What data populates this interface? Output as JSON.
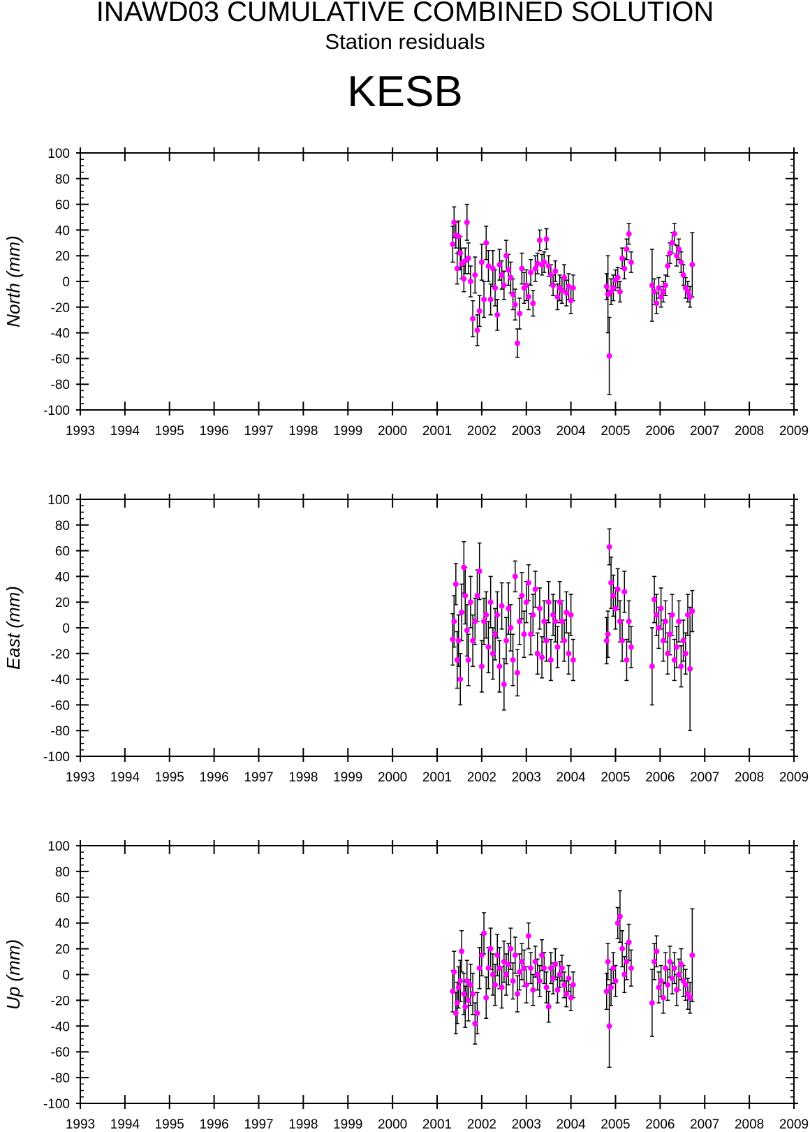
{
  "header": {
    "title": "INAWD03 CUMULATIVE COMBINED SOLUTION",
    "subtitle": "Station residuals",
    "station": "KESB"
  },
  "style": {
    "point_color": "#ff00ff",
    "errorbar_color": "#000000",
    "axis_color": "#000000"
  },
  "chart_data": [
    {
      "type": "scatter",
      "ylabel": "North (mm)",
      "xlim": [
        1993,
        2009
      ],
      "ylim": [
        -100,
        100
      ],
      "x_ticks": [
        1993,
        1994,
        1995,
        1996,
        1997,
        1998,
        1999,
        2000,
        2001,
        2002,
        2003,
        2004,
        2005,
        2006,
        2007,
        2008,
        2009
      ],
      "y_ticks": [
        -100,
        -80,
        -60,
        -40,
        -20,
        0,
        20,
        40,
        60,
        80,
        100
      ],
      "series": [
        {
          "x": [
            2001.35,
            2001.38,
            2001.42,
            2001.45,
            2001.48,
            2001.52,
            2001.55,
            2001.6,
            2001.63,
            2001.67,
            2001.7,
            2001.75,
            2001.8,
            2001.85,
            2001.9,
            2001.95,
            2002.0,
            2002.05,
            2002.1,
            2002.15,
            2002.2,
            2002.25,
            2002.3,
            2002.35,
            2002.4,
            2002.45,
            2002.5,
            2002.55,
            2002.6,
            2002.65,
            2002.7,
            2002.75,
            2002.8,
            2002.85,
            2002.9,
            2002.95,
            2003.0,
            2003.05,
            2003.1,
            2003.15,
            2003.2,
            2003.25,
            2003.3,
            2003.35,
            2003.4,
            2003.45,
            2003.5,
            2003.55,
            2003.6,
            2003.65,
            2003.7,
            2003.75,
            2003.8,
            2003.85,
            2003.9,
            2003.95,
            2004.0,
            2004.05,
            2004.8,
            2004.83,
            2004.86,
            2004.9,
            2004.95,
            2005.0,
            2005.05,
            2005.1,
            2005.15,
            2005.2,
            2005.25,
            2005.3,
            2005.35,
            2005.82,
            2005.87,
            2005.92,
            2005.97,
            2006.02,
            2006.07,
            2006.12,
            2006.17,
            2006.22,
            2006.27,
            2006.32,
            2006.37,
            2006.42,
            2006.47,
            2006.52,
            2006.57,
            2006.62,
            2006.67,
            2006.72
          ],
          "y": [
            29,
            46,
            36,
            10,
            35,
            22,
            14,
            2,
            16,
            46,
            18,
            0,
            -29,
            5,
            -38,
            -23,
            15,
            -14,
            30,
            12,
            -14,
            10,
            -5,
            -26,
            13,
            5,
            -3,
            20,
            9,
            3,
            -10,
            -18,
            -48,
            -25,
            10,
            -5,
            -3,
            -12,
            7,
            -17,
            10,
            14,
            32,
            13,
            15,
            33,
            12,
            5,
            -3,
            8,
            -12,
            -5,
            -7,
            3,
            -9,
            -4,
            -15,
            -5,
            -4,
            -10,
            -58,
            -8,
            -5,
            1,
            3,
            -8,
            18,
            10,
            25,
            37,
            15,
            -3,
            -8,
            -17,
            -5,
            -12,
            -8,
            -3,
            12,
            22,
            30,
            37,
            20,
            25,
            15,
            5,
            -5,
            -8,
            -12,
            13
          ],
          "err": [
            14,
            12,
            10,
            12,
            12,
            13,
            12,
            10,
            10,
            14,
            12,
            12,
            14,
            14,
            12,
            12,
            14,
            14,
            13,
            12,
            12,
            14,
            14,
            12,
            12,
            11,
            11,
            12,
            12,
            12,
            12,
            12,
            11,
            12,
            12,
            12,
            12,
            10,
            10,
            10,
            10,
            8,
            8,
            8,
            8,
            8,
            8,
            8,
            8,
            8,
            10,
            10,
            10,
            10,
            10,
            10,
            10,
            10,
            10,
            30,
            30,
            10,
            10,
            8,
            8,
            8,
            8,
            8,
            8,
            8,
            8,
            28,
            10,
            8,
            8,
            8,
            8,
            8,
            8,
            8,
            8,
            8,
            8,
            8,
            8,
            8,
            8,
            8,
            8,
            25
          ]
        }
      ]
    },
    {
      "type": "scatter",
      "ylabel": "East (mm)",
      "xlim": [
        1993,
        2009
      ],
      "ylim": [
        -100,
        100
      ],
      "x_ticks": [
        1993,
        1994,
        1995,
        1996,
        1997,
        1998,
        1999,
        2000,
        2001,
        2002,
        2003,
        2004,
        2005,
        2006,
        2007,
        2008,
        2009
      ],
      "y_ticks": [
        -100,
        -80,
        -60,
        -40,
        -20,
        0,
        20,
        40,
        60,
        80,
        100
      ],
      "series": [
        {
          "x": [
            2001.35,
            2001.38,
            2001.42,
            2001.45,
            2001.48,
            2001.52,
            2001.55,
            2001.6,
            2001.63,
            2001.67,
            2001.7,
            2001.75,
            2001.8,
            2001.85,
            2001.9,
            2001.95,
            2002.0,
            2002.05,
            2002.1,
            2002.15,
            2002.2,
            2002.25,
            2002.3,
            2002.35,
            2002.4,
            2002.45,
            2002.5,
            2002.55,
            2002.6,
            2002.65,
            2002.7,
            2002.75,
            2002.8,
            2002.85,
            2002.9,
            2002.95,
            2003.0,
            2003.05,
            2003.1,
            2003.15,
            2003.2,
            2003.25,
            2003.3,
            2003.35,
            2003.4,
            2003.45,
            2003.5,
            2003.55,
            2003.6,
            2003.65,
            2003.7,
            2003.75,
            2003.8,
            2003.85,
            2003.9,
            2003.95,
            2004.0,
            2004.05,
            2004.8,
            2004.83,
            2004.86,
            2004.9,
            2004.95,
            2005.0,
            2005.05,
            2005.1,
            2005.15,
            2005.2,
            2005.25,
            2005.3,
            2005.35,
            2005.82,
            2005.87,
            2005.92,
            2005.97,
            2006.02,
            2006.07,
            2006.12,
            2006.17,
            2006.22,
            2006.27,
            2006.32,
            2006.37,
            2006.42,
            2006.47,
            2006.52,
            2006.57,
            2006.62,
            2006.67,
            2006.72
          ],
          "y": [
            -9,
            5,
            34,
            -25,
            -10,
            -40,
            12,
            47,
            25,
            -2,
            -25,
            20,
            -10,
            5,
            25,
            44,
            -30,
            5,
            10,
            -15,
            20,
            -20,
            -5,
            10,
            -30,
            17,
            -44,
            -10,
            15,
            0,
            -25,
            40,
            -35,
            5,
            25,
            -5,
            20,
            35,
            -5,
            10,
            30,
            -20,
            15,
            -23,
            5,
            -10,
            20,
            -25,
            10,
            5,
            -15,
            20,
            5,
            -10,
            12,
            -20,
            10,
            -25,
            -10,
            -5,
            63,
            35,
            25,
            15,
            30,
            5,
            -10,
            28,
            -25,
            5,
            -15,
            -30,
            22,
            10,
            0,
            15,
            -10,
            5,
            -20,
            -5,
            10,
            -25,
            -15,
            5,
            -30,
            -10,
            -20,
            10,
            -32,
            13
          ],
          "err": [
            20,
            20,
            16,
            22,
            20,
            20,
            22,
            20,
            22,
            20,
            20,
            20,
            20,
            18,
            20,
            22,
            20,
            18,
            18,
            20,
            20,
            20,
            20,
            18,
            20,
            18,
            20,
            18,
            20,
            18,
            20,
            12,
            18,
            18,
            18,
            18,
            16,
            14,
            16,
            16,
            14,
            16,
            16,
            16,
            16,
            16,
            16,
            16,
            16,
            16,
            16,
            16,
            16,
            16,
            16,
            16,
            16,
            16,
            18,
            18,
            14,
            20,
            16,
            16,
            16,
            16,
            16,
            16,
            16,
            16,
            16,
            30,
            18,
            16,
            16,
            16,
            16,
            16,
            16,
            16,
            16,
            16,
            16,
            16,
            16,
            16,
            16,
            16,
            48,
            16
          ]
        }
      ]
    },
    {
      "type": "scatter",
      "ylabel": "Up (mm)",
      "xlim": [
        1993,
        2009
      ],
      "ylim": [
        -100,
        100
      ],
      "x_ticks": [
        1993,
        1994,
        1995,
        1996,
        1997,
        1998,
        1999,
        2000,
        2001,
        2002,
        2003,
        2004,
        2005,
        2006,
        2007,
        2008,
        2009
      ],
      "y_ticks": [
        -100,
        -80,
        -60,
        -40,
        -20,
        0,
        20,
        40,
        60,
        80,
        100
      ],
      "series": [
        {
          "x": [
            2001.35,
            2001.38,
            2001.42,
            2001.45,
            2001.48,
            2001.52,
            2001.55,
            2001.6,
            2001.63,
            2001.67,
            2001.7,
            2001.75,
            2001.8,
            2001.85,
            2001.9,
            2001.95,
            2002.0,
            2002.05,
            2002.1,
            2002.15,
            2002.2,
            2002.25,
            2002.3,
            2002.35,
            2002.4,
            2002.45,
            2002.5,
            2002.55,
            2002.6,
            2002.65,
            2002.7,
            2002.75,
            2002.8,
            2002.85,
            2002.9,
            2002.95,
            2003.0,
            2003.05,
            2003.1,
            2003.15,
            2003.2,
            2003.25,
            2003.3,
            2003.35,
            2003.4,
            2003.45,
            2003.5,
            2003.55,
            2003.6,
            2003.65,
            2003.7,
            2003.75,
            2003.8,
            2003.85,
            2003.9,
            2003.95,
            2004.0,
            2004.05,
            2004.8,
            2004.83,
            2004.86,
            2004.9,
            2004.95,
            2005.0,
            2005.05,
            2005.1,
            2005.15,
            2005.2,
            2005.25,
            2005.3,
            2005.35,
            2005.82,
            2005.87,
            2005.92,
            2005.97,
            2006.02,
            2006.07,
            2006.12,
            2006.17,
            2006.22,
            2006.27,
            2006.32,
            2006.37,
            2006.42,
            2006.47,
            2006.52,
            2006.57,
            2006.62,
            2006.67,
            2006.72
          ],
          "y": [
            -13,
            2,
            -30,
            -22,
            -10,
            -5,
            18,
            -15,
            -25,
            -5,
            -20,
            -8,
            -15,
            -38,
            -30,
            5,
            15,
            32,
            -18,
            5,
            20,
            0,
            -8,
            15,
            5,
            -10,
            10,
            0,
            8,
            20,
            -5,
            15,
            -15,
            2,
            10,
            5,
            -8,
            30,
            5,
            -12,
            10,
            0,
            -5,
            15,
            5,
            -10,
            -25,
            5,
            -3,
            8,
            -12,
            0,
            5,
            -8,
            -15,
            -3,
            -18,
            -8,
            -13,
            10,
            -40,
            -10,
            5,
            -5,
            40,
            45,
            20,
            0,
            10,
            25,
            5,
            -22,
            10,
            18,
            -10,
            -5,
            -18,
            5,
            -8,
            10,
            -3,
            5,
            -12,
            0,
            8,
            -5,
            -8,
            -15,
            -18,
            15
          ],
          "err": [
            16,
            16,
            16,
            16,
            16,
            16,
            16,
            16,
            16,
            16,
            16,
            16,
            16,
            16,
            16,
            16,
            16,
            16,
            16,
            16,
            16,
            16,
            16,
            16,
            16,
            16,
            16,
            16,
            16,
            16,
            14,
            14,
            14,
            14,
            14,
            14,
            14,
            10,
            12,
            12,
            12,
            12,
            12,
            12,
            12,
            12,
            12,
            12,
            12,
            12,
            10,
            10,
            10,
            10,
            10,
            10,
            10,
            10,
            14,
            14,
            32,
            14,
            12,
            12,
            12,
            20,
            14,
            14,
            14,
            14,
            14,
            26,
            14,
            12,
            12,
            12,
            12,
            12,
            12,
            12,
            12,
            12,
            12,
            12,
            12,
            12,
            12,
            12,
            12,
            36
          ]
        }
      ]
    }
  ]
}
